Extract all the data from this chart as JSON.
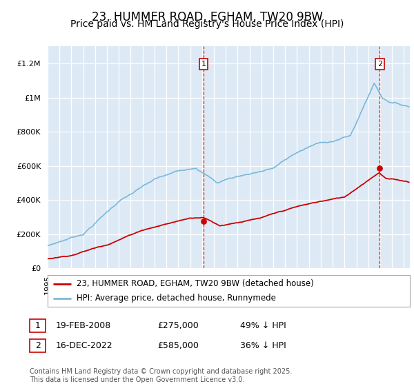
{
  "title": "23, HUMMER ROAD, EGHAM, TW20 9BW",
  "subtitle": "Price paid vs. HM Land Registry's House Price Index (HPI)",
  "ylabel_ticks": [
    "£0",
    "£200K",
    "£400K",
    "£600K",
    "£800K",
    "£1M",
    "£1.2M"
  ],
  "ytick_values": [
    0,
    200000,
    400000,
    600000,
    800000,
    1000000,
    1200000
  ],
  "ylim": [
    0,
    1300000
  ],
  "xlim_start": 1995.0,
  "xlim_end": 2025.5,
  "hpi_color": "#7ab8d9",
  "price_color": "#cc0000",
  "vline_color": "#cc0000",
  "bg_color": "#ddeaf5",
  "grid_color": "#ffffff",
  "purchase1_date": 2008.12,
  "purchase1_price": 275000,
  "purchase2_date": 2022.96,
  "purchase2_price": 585000,
  "legend_line1": "23, HUMMER ROAD, EGHAM, TW20 9BW (detached house)",
  "legend_line2": "HPI: Average price, detached house, Runnymede",
  "table_row1": [
    "1",
    "19-FEB-2008",
    "£275,000",
    "49% ↓ HPI"
  ],
  "table_row2": [
    "2",
    "16-DEC-2022",
    "£585,000",
    "36% ↓ HPI"
  ],
  "footnote": "Contains HM Land Registry data © Crown copyright and database right 2025.\nThis data is licensed under the Open Government Licence v3.0.",
  "title_fontsize": 12,
  "subtitle_fontsize": 10,
  "tick_fontsize": 8,
  "legend_fontsize": 8.5,
  "table_fontsize": 9,
  "footnote_fontsize": 7
}
